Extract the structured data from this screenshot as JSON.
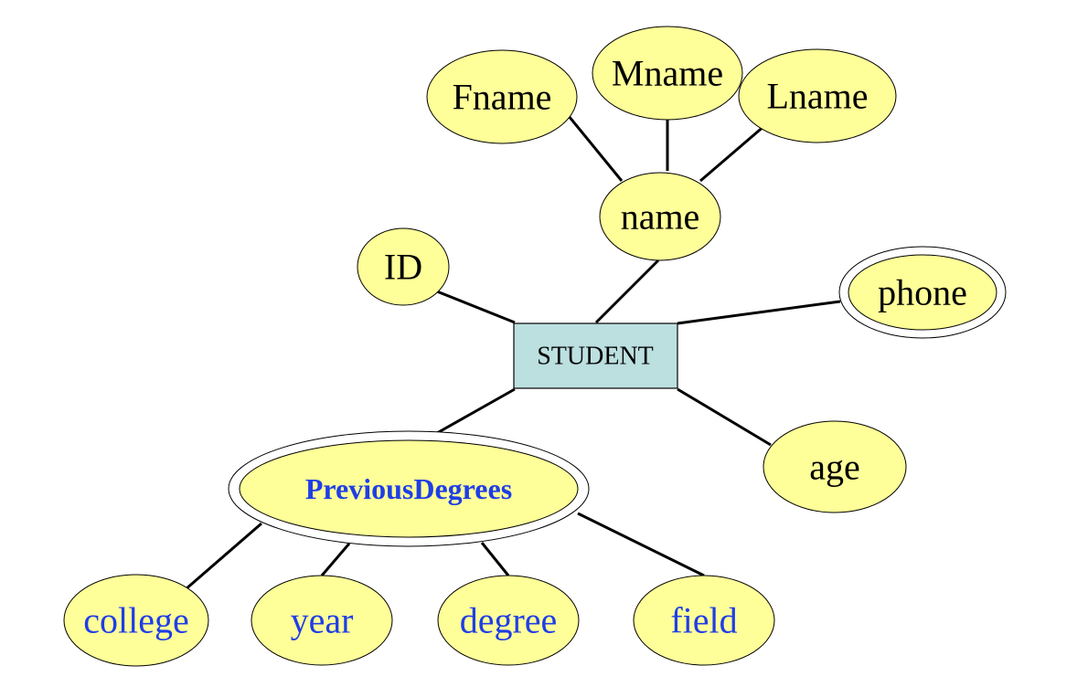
{
  "diagram": {
    "type": "er-diagram",
    "entity": {
      "label": "STUDENT"
    },
    "attributes": {
      "id": "ID",
      "name": "name",
      "fname": "Fname",
      "mname": "Mname",
      "lname": "Lname",
      "phone": "phone",
      "age": "age",
      "previous_degrees": "PreviousDegrees",
      "college": "college",
      "year": "year",
      "degree": "degree",
      "field": "field"
    },
    "colors": {
      "attribute_fill": "#ffff99",
      "entity_fill": "#bcdfe0",
      "blue_text": "#1f3ee6",
      "black_text": "#000000"
    }
  }
}
